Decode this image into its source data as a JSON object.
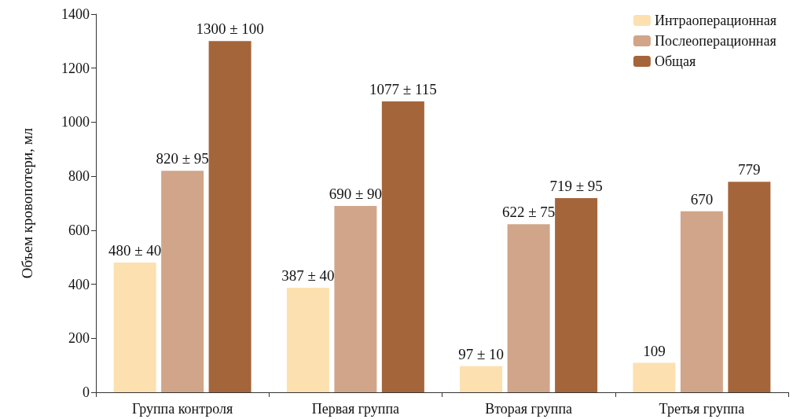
{
  "chart_data": {
    "type": "bar",
    "ylabel": "Объем кровопотери, мл",
    "categories": [
      "Группа контроля",
      "Первая группа",
      "Вторая группа",
      "Третья группа"
    ],
    "series": [
      {
        "name": "Интраоперационная",
        "color": "#fde0b0",
        "values": [
          480,
          387,
          97,
          109
        ],
        "value_labels": [
          "480 ± 40",
          "387 ± 40",
          "97 ± 10",
          "109"
        ]
      },
      {
        "name": "Послеоперационная",
        "color": "#d0a589",
        "values": [
          820,
          690,
          622,
          670
        ],
        "value_labels": [
          "820 ± 95",
          "690 ± 90",
          "622 ± 75",
          "670"
        ]
      },
      {
        "name": "Общая",
        "color": "#a5653a",
        "values": [
          1300,
          1077,
          719,
          779
        ],
        "value_labels": [
          "1300 ± 100",
          "1077 ± 115",
          "719 ± 95",
          "779"
        ]
      }
    ],
    "ylim": [
      0,
      1400
    ],
    "yticks": [
      0,
      200,
      400,
      600,
      800,
      1000,
      1200,
      1400
    ],
    "grid": false,
    "legend": "top right"
  }
}
